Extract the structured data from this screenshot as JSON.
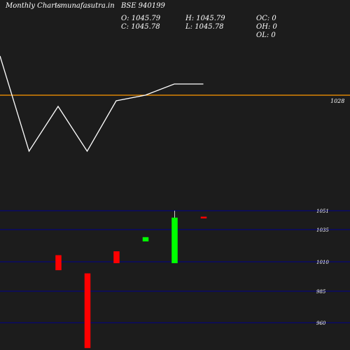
{
  "header": {
    "brand": "Monthly Charts",
    "site": "- munafasutra.in",
    "symbol": "BSE 940199",
    "open": "O: 1045.79",
    "close": "C: 1045.78",
    "high": "H: 1045.79",
    "low": "L: 1045.78",
    "oc": "OC: 0",
    "oh": "OH: 0",
    "ol": "OL: 0"
  },
  "colors": {
    "background": "#1c1c1c",
    "level_line": "#ff9900",
    "grid_line": "#00008b",
    "bull": "#00ff00",
    "bear": "#ff0000",
    "line": "#ffffff"
  },
  "chart_data": [
    {
      "type": "line",
      "level": {
        "value": 1028,
        "label": "1028"
      },
      "series": [
        {
          "y": [
            1035,
            1018,
            1026,
            1018,
            1027,
            1028,
            1030,
            1030
          ]
        }
      ]
    },
    {
      "type": "candlestick",
      "yticks": [
        1051,
        1035,
        1010,
        985,
        960
      ],
      "ylim": [
        940,
        1058
      ],
      "candles": [
        {
          "open": 1015,
          "close": 1003,
          "high": 1015,
          "low": 1003
        },
        {
          "open": 1000,
          "close": 940,
          "high": 1000,
          "low": 940
        },
        {
          "open": 1018,
          "close": 1009,
          "high": 1018,
          "low": 1009
        },
        {
          "open": 1026,
          "close": 1029,
          "high": 1029,
          "low": 1026
        },
        {
          "open": 1009,
          "close": 1045,
          "high": 1051,
          "low": 1009
        },
        {
          "open": 1045.79,
          "close": 1045.78,
          "high": 1045.79,
          "low": 1045.78
        }
      ]
    }
  ]
}
